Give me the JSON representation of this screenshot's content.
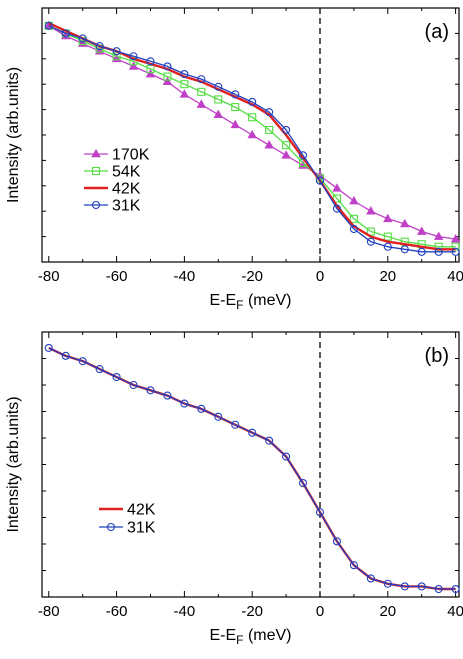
{
  "chart_data": [
    {
      "type": "line",
      "panel_label": "(a)",
      "xlabel_main": "E-E",
      "xlabel_sub": "F",
      "xlabel_tail": " (meV)",
      "ylabel": "Intensity (arb.units)",
      "xlim": [
        -82,
        41
      ],
      "ylim": [
        0,
        1
      ],
      "xticks": [
        -80,
        -60,
        -40,
        -20,
        0,
        20,
        40
      ],
      "y_ticks_labeled": false,
      "reference_line_x": 0,
      "legend_position": "middle-left",
      "series": [
        {
          "name": "170K",
          "color": "#c040c8",
          "marker": "triangle",
          "x": [
            -80,
            -75,
            -70,
            -65,
            -60,
            -55,
            -50,
            -45,
            -40,
            -35,
            -30,
            -25,
            -20,
            -15,
            -10,
            -5,
            0,
            5,
            10,
            15,
            20,
            25,
            30,
            35,
            40
          ],
          "y": [
            0.93,
            0.89,
            0.86,
            0.83,
            0.8,
            0.77,
            0.74,
            0.71,
            0.66,
            0.62,
            0.58,
            0.54,
            0.5,
            0.46,
            0.42,
            0.38,
            0.34,
            0.29,
            0.24,
            0.2,
            0.17,
            0.15,
            0.12,
            0.1,
            0.09
          ]
        },
        {
          "name": "54K",
          "color": "#55dd44",
          "marker": "square",
          "x": [
            -80,
            -75,
            -70,
            -65,
            -60,
            -55,
            -50,
            -45,
            -40,
            -35,
            -30,
            -25,
            -20,
            -15,
            -10,
            -5,
            0,
            5,
            10,
            15,
            20,
            25,
            30,
            35,
            40
          ],
          "y": [
            0.93,
            0.9,
            0.87,
            0.84,
            0.81,
            0.79,
            0.76,
            0.73,
            0.7,
            0.67,
            0.64,
            0.61,
            0.57,
            0.52,
            0.46,
            0.39,
            0.33,
            0.25,
            0.17,
            0.12,
            0.1,
            0.08,
            0.07,
            0.06,
            0.06
          ]
        },
        {
          "name": "42K",
          "color": "#e02020",
          "marker": "none",
          "x": [
            -80,
            -75,
            -70,
            -65,
            -60,
            -55,
            -50,
            -45,
            -40,
            -35,
            -30,
            -25,
            -20,
            -15,
            -10,
            -5,
            0,
            5,
            10,
            15,
            20,
            25,
            30,
            35,
            40
          ],
          "y": [
            0.94,
            0.91,
            0.88,
            0.85,
            0.83,
            0.8,
            0.78,
            0.76,
            0.73,
            0.71,
            0.68,
            0.65,
            0.62,
            0.58,
            0.5,
            0.41,
            0.32,
            0.22,
            0.14,
            0.1,
            0.08,
            0.07,
            0.06,
            0.05,
            0.05
          ]
        },
        {
          "name": "31K",
          "color": "#2040c0",
          "marker": "circle",
          "x": [
            -80,
            -75,
            -70,
            -65,
            -60,
            -55,
            -50,
            -45,
            -40,
            -35,
            -30,
            -25,
            -20,
            -15,
            -10,
            -5,
            0,
            5,
            10,
            15,
            20,
            25,
            30,
            35,
            40
          ],
          "y": [
            0.93,
            0.9,
            0.88,
            0.85,
            0.83,
            0.81,
            0.79,
            0.77,
            0.74,
            0.72,
            0.69,
            0.66,
            0.63,
            0.59,
            0.52,
            0.42,
            0.32,
            0.21,
            0.13,
            0.08,
            0.06,
            0.05,
            0.04,
            0.04,
            0.04
          ]
        }
      ]
    },
    {
      "type": "line",
      "panel_label": "(b)",
      "xlabel_main": "E-E",
      "xlabel_sub": "F",
      "xlabel_tail": " (meV)",
      "ylabel": "Intensity (arb.units)",
      "xlim": [
        -82,
        41
      ],
      "ylim": [
        0,
        1
      ],
      "xticks": [
        -80,
        -60,
        -40,
        -20,
        0,
        20,
        40
      ],
      "y_ticks_labeled": false,
      "reference_line_x": 0,
      "legend_position": "middle-left",
      "series": [
        {
          "name": "42K",
          "color": "#e02020",
          "marker": "none",
          "x": [
            -80,
            -75,
            -70,
            -65,
            -60,
            -55,
            -50,
            -45,
            -40,
            -35,
            -30,
            -25,
            -20,
            -15,
            -10,
            -5,
            0,
            5,
            10,
            15,
            20,
            25,
            30,
            35,
            40
          ],
          "y": [
            0.94,
            0.91,
            0.89,
            0.86,
            0.83,
            0.8,
            0.78,
            0.76,
            0.73,
            0.71,
            0.68,
            0.65,
            0.62,
            0.59,
            0.53,
            0.43,
            0.32,
            0.21,
            0.12,
            0.07,
            0.05,
            0.04,
            0.04,
            0.03,
            0.03
          ]
        },
        {
          "name": "31K",
          "color": "#2040c0",
          "marker": "circle",
          "x": [
            -80,
            -75,
            -70,
            -65,
            -60,
            -55,
            -50,
            -45,
            -40,
            -35,
            -30,
            -25,
            -20,
            -15,
            -10,
            -5,
            0,
            5,
            10,
            15,
            20,
            25,
            30,
            35,
            40
          ],
          "y": [
            0.94,
            0.91,
            0.89,
            0.86,
            0.83,
            0.8,
            0.78,
            0.76,
            0.73,
            0.71,
            0.68,
            0.65,
            0.62,
            0.59,
            0.53,
            0.43,
            0.32,
            0.21,
            0.12,
            0.07,
            0.05,
            0.04,
            0.04,
            0.03,
            0.03
          ]
        }
      ]
    }
  ]
}
